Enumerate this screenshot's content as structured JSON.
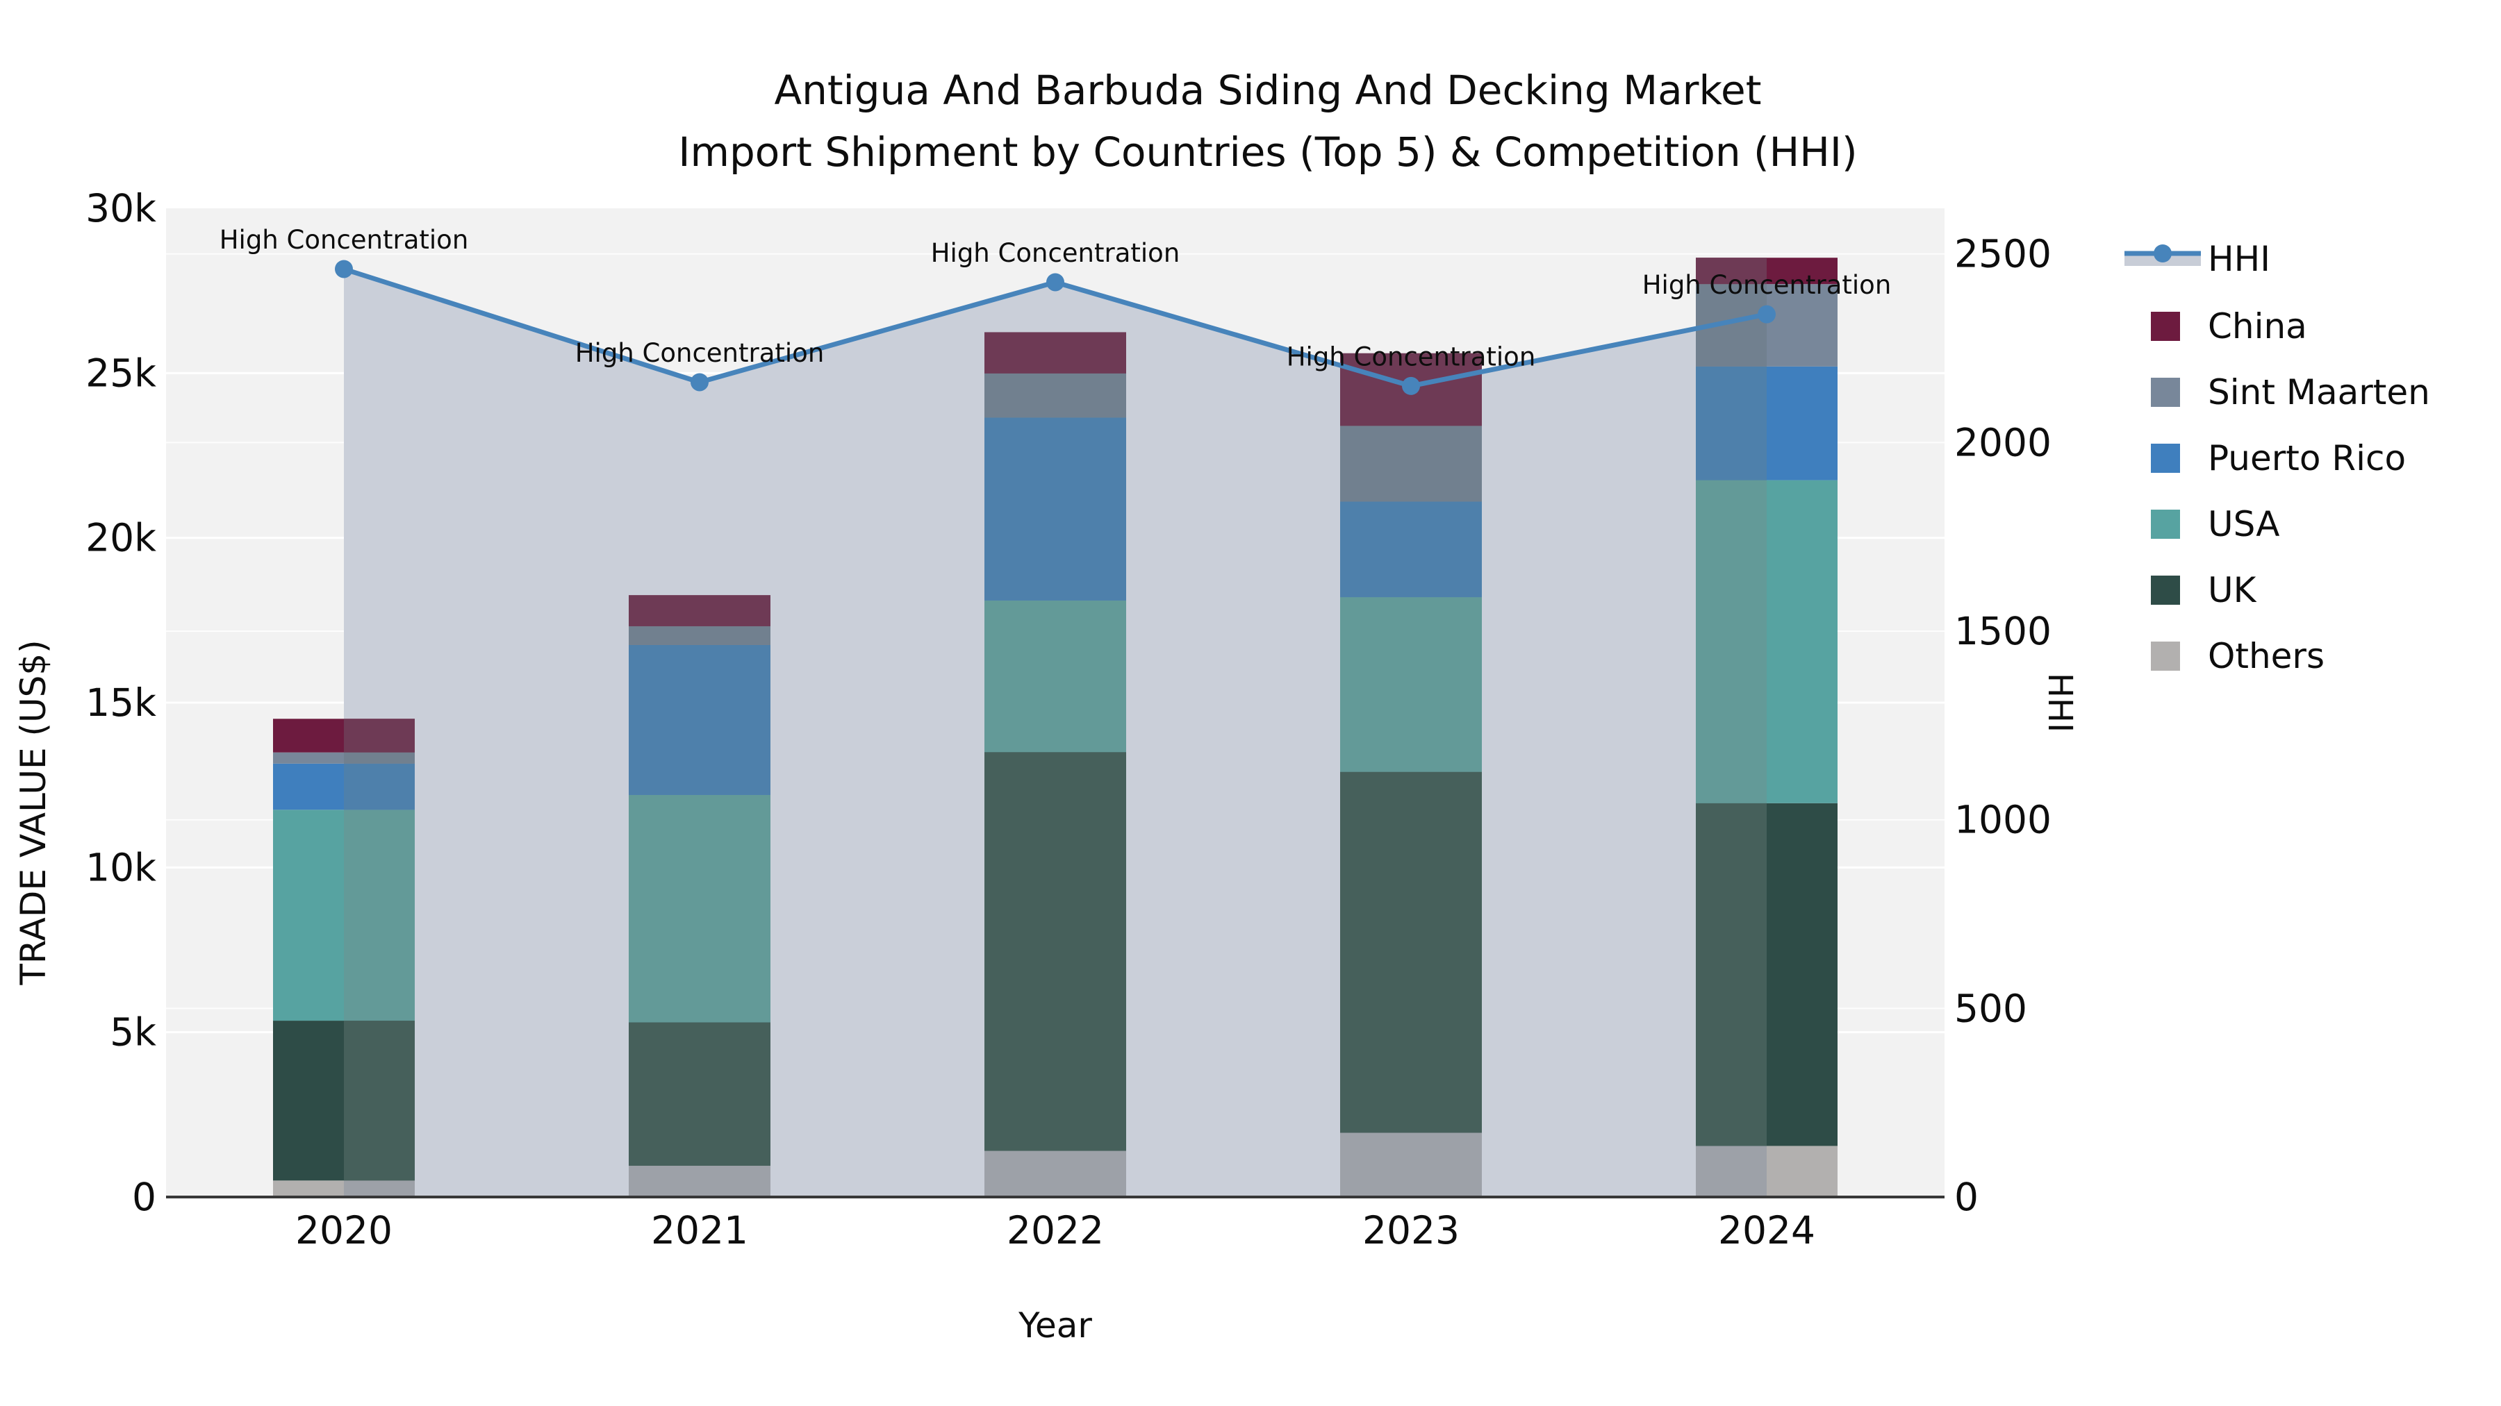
{
  "title": {
    "line1": "Antigua And Barbuda Siding And Decking Market",
    "line2": "Import Shipment by Countries (Top 5) & Competition (HHI)"
  },
  "axes": {
    "x": {
      "label": "Year",
      "tick_labels": [
        "2020",
        "2021",
        "2022",
        "2023",
        "2024"
      ]
    },
    "y_left": {
      "label": "TRADE VALUE (US$)",
      "tick_labels": [
        "0",
        "5k",
        "10k",
        "15k",
        "20k",
        "25k",
        "30k"
      ],
      "tick_values": [
        0,
        5000,
        10000,
        15000,
        20000,
        25000,
        30000
      ],
      "range": [
        0,
        30000
      ]
    },
    "y_right": {
      "label": "HHI",
      "tick_labels": [
        "0",
        "500",
        "1000",
        "1500",
        "2000",
        "2500"
      ],
      "tick_values": [
        0,
        500,
        1000,
        1500,
        2000,
        2500
      ],
      "range": [
        0,
        2621
      ]
    }
  },
  "legend": {
    "items": [
      "HHI",
      "China",
      "Sint Maarten",
      "Puerto Rico",
      "USA",
      "UK",
      "Others"
    ]
  },
  "annotations": [
    {
      "year": "2020",
      "text": "High Concentration"
    },
    {
      "year": "2021",
      "text": "High Concentration"
    },
    {
      "year": "2022",
      "text": "High Concentration"
    },
    {
      "year": "2023",
      "text": "High Concentration"
    },
    {
      "year": "2024",
      "text": "High Concentration"
    }
  ],
  "chart_data": {
    "type": "bar",
    "subtype": "stacked-bars-with-line-dual-axis",
    "title": "Antigua And Barbuda Siding And Decking Market Import Shipment by Countries (Top 5) & Competition (HHI)",
    "xlabel": "Year",
    "ylabel": "TRADE VALUE (US$)",
    "ylabel2": "HHI",
    "categories": [
      "2020",
      "2021",
      "2022",
      "2023",
      "2024"
    ],
    "ylim_left": [
      0,
      30000
    ],
    "ylim_right": [
      0,
      2621
    ],
    "grid": true,
    "legend_position": "right-outside",
    "stack_order_note": "series listed bottom-to-top of stack",
    "series": [
      {
        "name": "Others",
        "color": "#b2b0af",
        "color_shaded": "#9da1a8",
        "values": [
          500,
          950,
          1400,
          1950,
          1550
        ]
      },
      {
        "name": "UK",
        "color": "#2e4c47",
        "color_shaded": "#46605b",
        "values": [
          4850,
          4350,
          12100,
          10950,
          10400
        ]
      },
      {
        "name": "USA",
        "color": "#57a3a1",
        "color_shaded": "#639a98",
        "values": [
          6400,
          6900,
          4600,
          5300,
          9800
        ]
      },
      {
        "name": "Puerto Rico",
        "color": "#3f7fbe",
        "color_shaded": "#4e80ab",
        "values": [
          1400,
          4550,
          5550,
          2900,
          3450
        ]
      },
      {
        "name": "Sint Maarten",
        "color": "#78879a",
        "color_shaded": "#71808f",
        "values": [
          340,
          570,
          1340,
          2300,
          2500
        ]
      },
      {
        "name": "China",
        "color": "#6d1b3f",
        "color_shaded": "#6e3a55",
        "values": [
          1020,
          940,
          1250,
          2200,
          800
        ]
      }
    ],
    "line_series": {
      "name": "HHI",
      "axis": "right",
      "values": [
        2460,
        2160,
        2425,
        2150,
        2340
      ],
      "color": "#4784bb",
      "marker": "circle",
      "area_fill_color": "#c8cdd7",
      "area_span": [
        "2020",
        "2024"
      ]
    },
    "annotation_text": "High Concentration"
  },
  "style": {
    "figure_background": "#ffffff",
    "plot_background": "#f2f2f2",
    "gridline_color": "#ffffff",
    "axis_spine_color": "#383838",
    "text_color": "#0d0d0d",
    "hhi_line_color": "#4784bb",
    "hhi_area_color": "#c8cdd7"
  }
}
